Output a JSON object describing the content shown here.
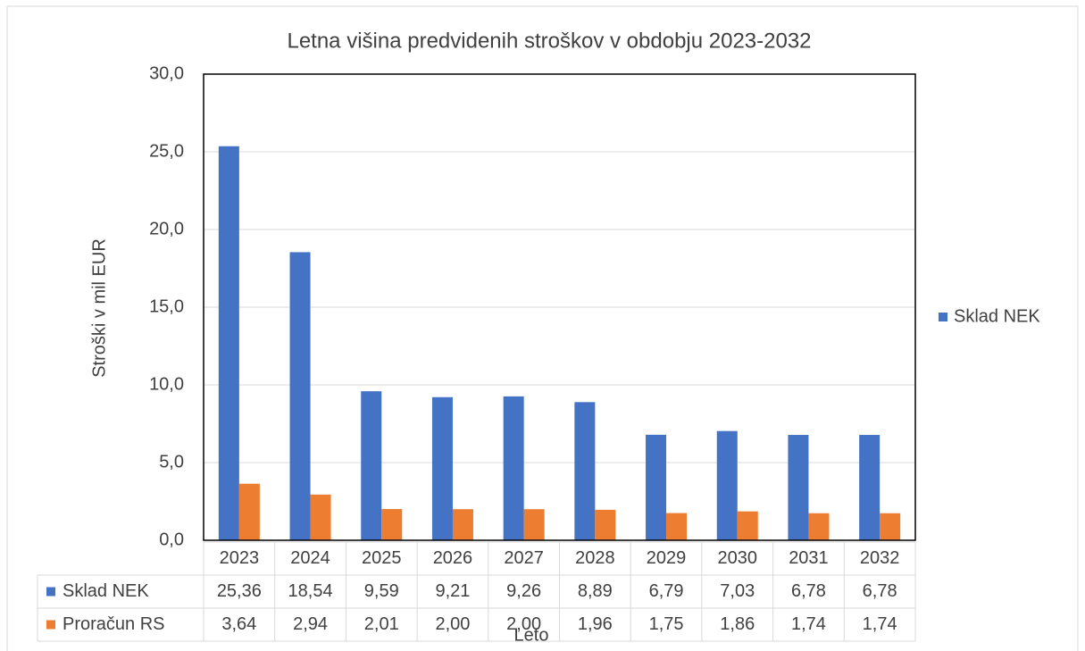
{
  "chart_data": {
    "type": "bar",
    "title": "Letna višina predvidenih stroškov v obdobju 2023-2032",
    "x_label": "Leto",
    "y_label": "Stroški v mil EUR",
    "categories": [
      "2023",
      "2024",
      "2025",
      "2026",
      "2027",
      "2028",
      "2029",
      "2030",
      "2031",
      "2032"
    ],
    "series": [
      {
        "name": "Sklad NEK",
        "color": "#4472c4",
        "values": [
          25.36,
          18.54,
          9.59,
          9.21,
          9.26,
          8.89,
          6.79,
          7.03,
          6.78,
          6.78
        ],
        "value_labels": [
          "25,36",
          "18,54",
          "9,59",
          "9,21",
          "9,26",
          "8,89",
          "6,79",
          "7,03",
          "6,78",
          "6,78"
        ]
      },
      {
        "name": "Proračun RS",
        "color": "#ed7d31",
        "values": [
          3.64,
          2.94,
          2.01,
          2.0,
          2.0,
          1.96,
          1.75,
          1.86,
          1.74,
          1.74
        ],
        "value_labels": [
          "3,64",
          "2,94",
          "2,01",
          "2,00",
          "2,00",
          "1,96",
          "1,75",
          "1,86",
          "1,74",
          "1,74"
        ]
      }
    ],
    "ylim": [
      0,
      30
    ],
    "yticks": [
      {
        "value": 0,
        "label": "0,0"
      },
      {
        "value": 5,
        "label": "5,0"
      },
      {
        "value": 10,
        "label": "10,0"
      },
      {
        "value": 15,
        "label": "15,0"
      },
      {
        "value": 20,
        "label": "20,0"
      },
      {
        "value": 25,
        "label": "25,0"
      },
      {
        "value": 30,
        "label": "30,0"
      }
    ],
    "grid": true,
    "legend_position": "right",
    "legend_series": [
      0
    ]
  }
}
